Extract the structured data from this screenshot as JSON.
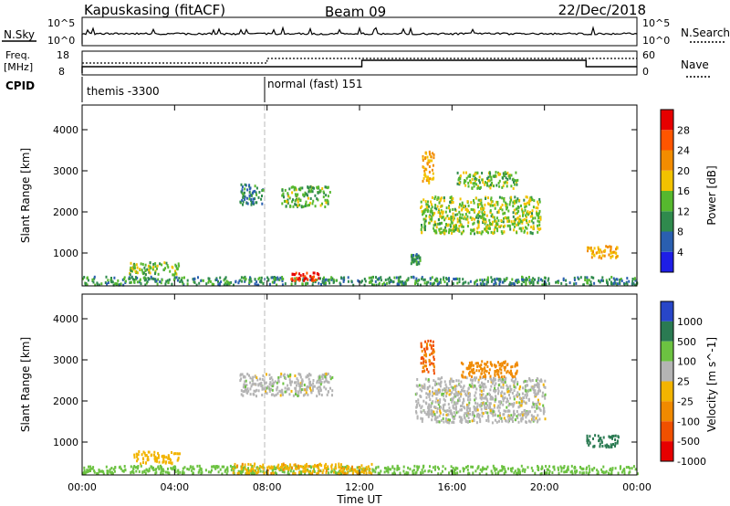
{
  "header": {
    "station": "Kapuskasing (fitACF)",
    "beam": "Beam 09",
    "date": "22/Dec/2018"
  },
  "nsky": {
    "label": "N.Sky",
    "top_tick": "10^5",
    "bottom_tick": "10^0",
    "right_label": "N.Search",
    "right_top_tick": "10^5",
    "right_bottom_tick": "10^0"
  },
  "freq": {
    "label_line1": "Freq.",
    "label_line2": "[MHz]",
    "top_tick": "18",
    "bottom_tick": "8",
    "right_label": "Nave",
    "right_top_tick": "60",
    "right_bottom_tick": "0"
  },
  "cpid": {
    "label": "CPID",
    "segments": [
      {
        "start_hour": 0,
        "end_hour": 8,
        "text": "themis -3300"
      },
      {
        "start_hour": 8,
        "end_hour": 24,
        "text": "normal (fast) 151"
      }
    ]
  },
  "time_axis": {
    "label": "Time UT",
    "tick_labels": [
      "00:00",
      "04:00",
      "08:00",
      "12:00",
      "16:00",
      "20:00",
      "00:00"
    ]
  },
  "colors": {
    "power_scale": [
      "#1e1ee6",
      "#2a5fb0",
      "#2f8a4d",
      "#56b82e",
      "#f2c200",
      "#f28c00",
      "#ff5500",
      "#e60000"
    ],
    "velocity_scale": [
      "#2846c8",
      "#2a7a52",
      "#6cc241",
      "#b4b4b4",
      "#f2b400",
      "#f08a00",
      "#f05000",
      "#e60000"
    ]
  },
  "chart_data": [
    {
      "type": "heatmap",
      "name": "power",
      "xlabel": "Time UT",
      "ylabel": "Slant Range [km]",
      "xlim": [
        0,
        24
      ],
      "ylim": [
        200,
        4600
      ],
      "yticks": [
        1000,
        2000,
        3000,
        4000
      ],
      "colorbar": {
        "label": "Power [dB]",
        "ticks": [
          4,
          8,
          12,
          16,
          20,
          24,
          28
        ],
        "range": [
          0,
          32
        ]
      },
      "regions": [
        {
          "t": [
            0.0,
            24.0
          ],
          "r": [
            250,
            450
          ],
          "value": 10
        },
        {
          "t": [
            2.0,
            4.2
          ],
          "r": [
            500,
            800
          ],
          "value": 14
        },
        {
          "t": [
            6.8,
            7.8
          ],
          "r": [
            2200,
            2700
          ],
          "value": 9
        },
        {
          "t": [
            8.6,
            10.7
          ],
          "r": [
            2150,
            2650
          ],
          "value": 13
        },
        {
          "t": [
            9.0,
            10.2
          ],
          "r": [
            350,
            550
          ],
          "value": 28
        },
        {
          "t": [
            14.2,
            14.6
          ],
          "r": [
            750,
            1000
          ],
          "value": 10
        },
        {
          "t": [
            14.6,
            19.8
          ],
          "r": [
            1500,
            2400
          ],
          "value": 15
        },
        {
          "t": [
            14.7,
            15.2
          ],
          "r": [
            2700,
            3500
          ],
          "value": 20
        },
        {
          "t": [
            16.2,
            18.8
          ],
          "r": [
            2600,
            3000
          ],
          "value": 14
        },
        {
          "t": [
            21.8,
            23.2
          ],
          "r": [
            900,
            1200
          ],
          "value": 20
        }
      ]
    },
    {
      "type": "heatmap",
      "name": "velocity",
      "xlabel": "Time UT",
      "ylabel": "Slant Range [km]",
      "xlim": [
        0,
        24
      ],
      "ylim": [
        200,
        4600
      ],
      "yticks": [
        1000,
        2000,
        3000,
        4000
      ],
      "colorbar": {
        "label": "Velocity [m s^-1]",
        "ticks": [
          1000,
          500,
          100,
          25,
          -25,
          -100,
          -500,
          -1000
        ]
      },
      "regions": [
        {
          "t": [
            0.0,
            24.0
          ],
          "r": [
            250,
            450
          ],
          "value": 60
        },
        {
          "t": [
            6.5,
            12.5
          ],
          "r": [
            250,
            500
          ],
          "value": -80
        },
        {
          "t": [
            2.2,
            4.2
          ],
          "r": [
            500,
            800
          ],
          "value": -60
        },
        {
          "t": [
            6.8,
            10.8
          ],
          "r": [
            2150,
            2700
          ],
          "value": 0
        },
        {
          "t": [
            14.4,
            20.0
          ],
          "r": [
            1500,
            2600
          ],
          "value": 0
        },
        {
          "t": [
            14.6,
            15.2
          ],
          "r": [
            2700,
            3500
          ],
          "value": -500
        },
        {
          "t": [
            16.3,
            18.8
          ],
          "r": [
            2600,
            3000
          ],
          "value": -300
        },
        {
          "t": [
            21.8,
            23.2
          ],
          "r": [
            900,
            1200
          ],
          "value": 150
        }
      ]
    }
  ]
}
